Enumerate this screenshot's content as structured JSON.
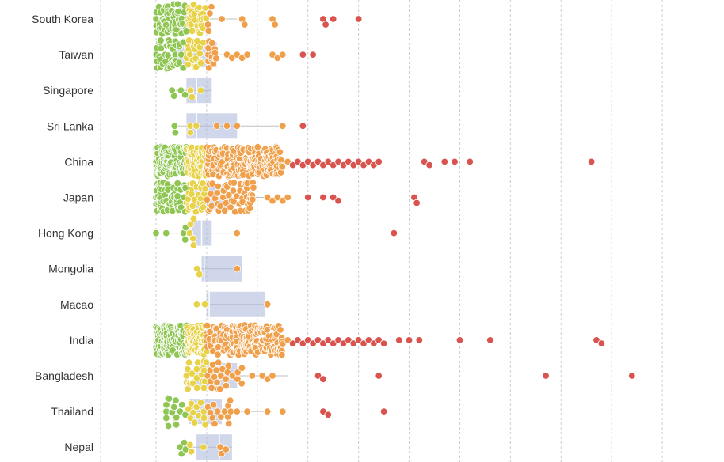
{
  "chart_data": {
    "type": "scatter",
    "subtype": "beeswarm-with-boxplot",
    "title": "",
    "xlabel": "",
    "ylabel": "",
    "xlim": [
      0,
      110
    ],
    "x_gridlines": [
      0,
      10,
      20,
      30,
      40,
      50,
      60,
      70,
      80,
      90,
      100
    ],
    "grid": true,
    "legend": "none",
    "color_thresholds": [
      {
        "max": 6,
        "color": "#8fc653"
      },
      {
        "max": 10,
        "color": "#e8d24a"
      },
      {
        "max": 26,
        "color": "#f0a04b"
      },
      {
        "max": 999,
        "color": "#d9534f"
      }
    ],
    "categories": [
      "South Korea",
      "Taiwan",
      "Singapore",
      "Sri Lanka",
      "China",
      "Japan",
      "Hong Kong",
      "Mongolia",
      "Macao",
      "India",
      "Bangladesh",
      "Thailand",
      "Nepal"
    ],
    "series": [
      {
        "name": "South Korea",
        "count": 90,
        "spread": [
          0,
          11
        ],
        "extra": [
          13,
          17,
          17.5,
          23,
          23.5,
          33,
          33.5,
          35,
          40
        ],
        "box": [
          4.5,
          7,
          9
        ],
        "whisker": [
          0,
          16
        ]
      },
      {
        "name": "Taiwan",
        "count": 80,
        "spread": [
          0,
          12
        ],
        "extra": [
          14,
          15,
          16,
          17,
          18,
          23,
          24,
          25,
          29,
          31
        ],
        "box": [
          4,
          8.5,
          12
        ],
        "whisker": [
          0,
          18
        ]
      },
      {
        "name": "Singapore",
        "count": 7,
        "spread": [
          3,
          11
        ],
        "extra": [],
        "box": [
          6,
          8,
          11
        ],
        "whisker": [
          3,
          11
        ]
      },
      {
        "name": "Sri Lanka",
        "count": 5,
        "spread": [
          3,
          8
        ],
        "extra": [
          12,
          14,
          16,
          25,
          29
        ],
        "box": [
          6,
          8,
          16
        ],
        "whisker": [
          3,
          25
        ]
      },
      {
        "name": "China",
        "count": 380,
        "spread": [
          0,
          25
        ],
        "extra": [
          26,
          27,
          28,
          29,
          30,
          31,
          32,
          33,
          34,
          35,
          36,
          37,
          38,
          39,
          40,
          41,
          42,
          43,
          44,
          53,
          54,
          57,
          59,
          62,
          86
        ],
        "box": [
          7,
          10,
          17
        ],
        "whisker": [
          0,
          26
        ]
      },
      {
        "name": "Japan",
        "count": 140,
        "spread": [
          0,
          20
        ],
        "extra": [
          22,
          23,
          24,
          25,
          26,
          30,
          33,
          35,
          36,
          51,
          51.5
        ],
        "box": [
          7,
          9.5,
          14
        ],
        "whisker": [
          0,
          22
        ]
      },
      {
        "name": "Hong Kong",
        "count": 8,
        "spread": [
          5,
          11
        ],
        "extra": [
          0,
          2,
          16,
          47
        ],
        "box": [
          7,
          9,
          11
        ],
        "whisker": [
          0,
          16
        ]
      },
      {
        "name": "Mongolia",
        "count": 2,
        "spread": [
          8,
          9
        ],
        "extra": [
          16
        ],
        "box": [
          9,
          9.5,
          17
        ],
        "whisker": [
          9,
          17
        ]
      },
      {
        "name": "Macao",
        "count": 2,
        "spread": [
          8,
          10
        ],
        "extra": [
          22
        ],
        "box": [
          10,
          10.5,
          21.5
        ],
        "whisker": [
          10,
          21.5
        ]
      },
      {
        "name": "India",
        "count": 400,
        "spread": [
          0,
          25
        ],
        "extra": [
          26,
          27,
          28,
          29,
          30,
          31,
          32,
          33,
          34,
          35,
          36,
          37,
          38,
          39,
          40,
          41,
          42,
          43,
          44,
          45,
          48,
          50,
          52,
          60,
          66,
          87,
          88
        ],
        "box": [
          7,
          10.5,
          17
        ],
        "whisker": [
          0,
          26
        ]
      },
      {
        "name": "Bangladesh",
        "count": 45,
        "spread": [
          6,
          17
        ],
        "extra": [
          19,
          21,
          22,
          23,
          32,
          33,
          44,
          77,
          94
        ],
        "box": [
          8,
          12,
          16
        ],
        "whisker": [
          6,
          26
        ]
      },
      {
        "name": "Thailand",
        "count": 40,
        "spread": [
          2,
          15
        ],
        "extra": [
          16,
          18,
          22,
          25,
          33,
          34,
          45
        ],
        "box": [
          6.5,
          9.5,
          13
        ],
        "whisker": [
          1,
          23
        ]
      },
      {
        "name": "Nepal",
        "count": 10,
        "spread": [
          4,
          15
        ],
        "extra": [],
        "box": [
          8,
          12.5,
          15
        ],
        "whisker": [
          4,
          15
        ]
      }
    ]
  }
}
